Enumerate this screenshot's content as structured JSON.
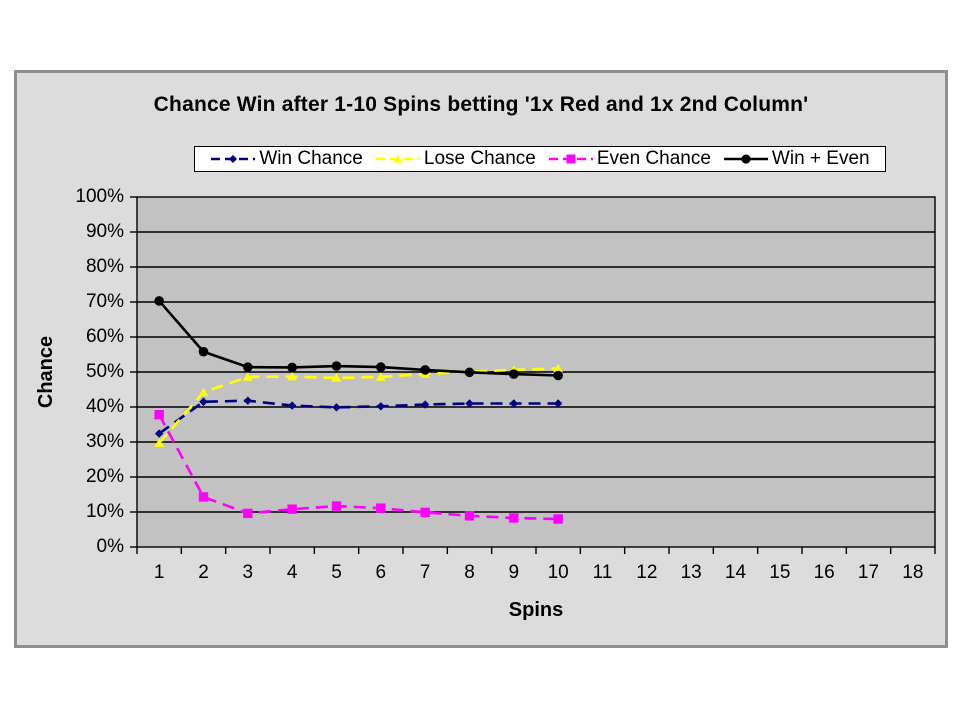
{
  "page": {
    "background": "#FFFFFF"
  },
  "chart_frame": {
    "background": "#DCDCDC",
    "border_color": "#8F8F8F"
  },
  "chart_data": {
    "type": "line",
    "title": "Chance Win after 1-10 Spins betting '1x Red and 1x 2nd Column'",
    "xlabel": "Spins",
    "ylabel": "Chance",
    "x_categories": [
      "1",
      "2",
      "3",
      "4",
      "5",
      "6",
      "7",
      "8",
      "9",
      "10",
      "11",
      "12",
      "13",
      "14",
      "15",
      "16",
      "17",
      "18"
    ],
    "x": [
      1,
      2,
      3,
      4,
      5,
      6,
      7,
      8,
      9,
      10
    ],
    "y_ticks": [
      0,
      10,
      20,
      30,
      40,
      50,
      60,
      70,
      80,
      90,
      100
    ],
    "y_tick_suffix": "%",
    "ylim": [
      0,
      100
    ],
    "grid": true,
    "legend_position": "top-center",
    "plot_bg": "#C2C2C2",
    "legend_bg": "#FFFFFF",
    "gridline_color": "#000000",
    "series": [
      {
        "name": "Win Chance",
        "color": "#000080",
        "line_style": "dashed",
        "marker": "diamond",
        "values": [
          32.4,
          41.5,
          41.8,
          40.4,
          39.9,
          40.2,
          40.7,
          41.0,
          41.0,
          41.0
        ]
      },
      {
        "name": "Lose Chance",
        "color": "#FFFF00",
        "line_style": "dashed",
        "marker": "triangle",
        "values": [
          29.7,
          44.2,
          48.6,
          48.7,
          48.3,
          48.6,
          49.4,
          50.1,
          50.6,
          51.0
        ]
      },
      {
        "name": "Even Chance",
        "color": "#FF00FF",
        "line_style": "dashed",
        "marker": "square",
        "values": [
          37.8,
          14.3,
          9.6,
          10.8,
          11.7,
          11.1,
          9.9,
          8.9,
          8.3,
          8.0
        ]
      },
      {
        "name": "Win + Even",
        "color": "#000000",
        "line_style": "solid",
        "marker": "circle",
        "values": [
          70.3,
          55.8,
          51.4,
          51.3,
          51.7,
          51.4,
          50.6,
          49.9,
          49.4,
          49.0
        ]
      }
    ]
  }
}
